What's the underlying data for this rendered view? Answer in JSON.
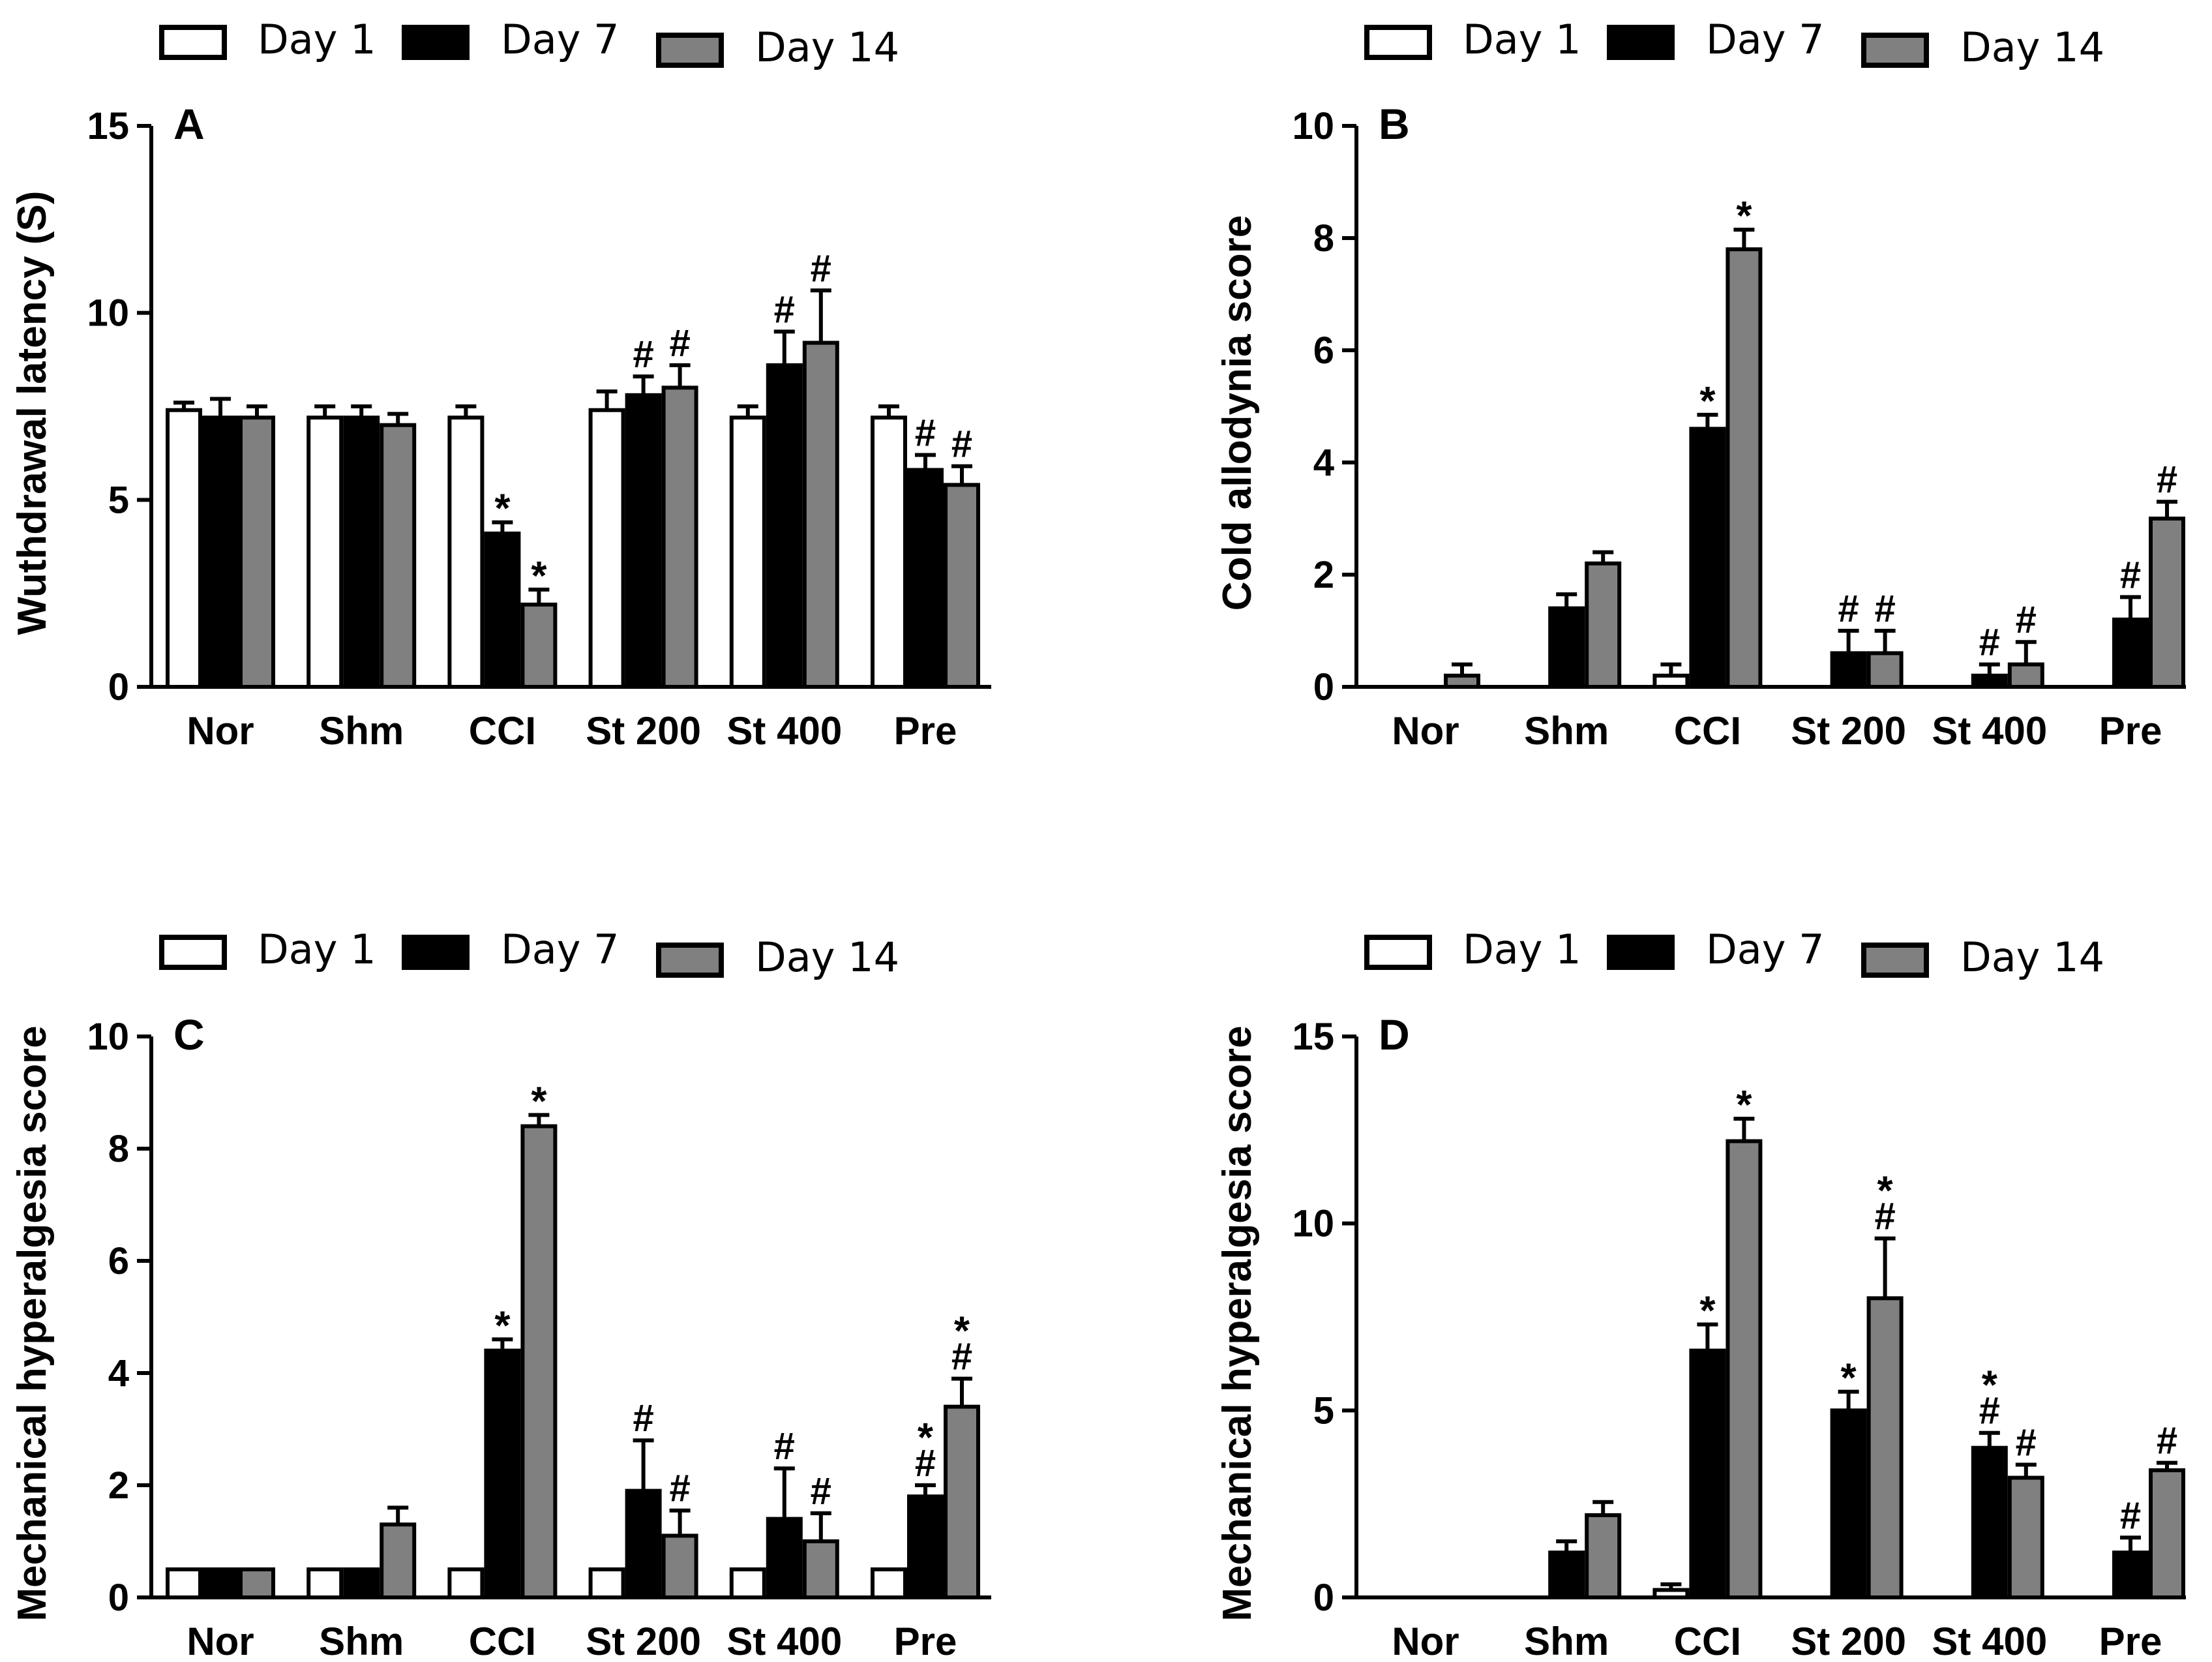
{
  "chart_data": [
    {
      "type": "bar",
      "panel_label": "A",
      "title": "",
      "xlabel": "",
      "ylabel": "Wuthdrawal latency (S)",
      "ylim": [
        0,
        15
      ],
      "yticks": [
        "0",
        "5",
        "10",
        "15"
      ],
      "categories": [
        "Nor",
        "Shm",
        "CCI",
        "St 200",
        "St 400",
        "Pre"
      ],
      "legend": [
        "Day 1",
        "Day 7",
        "Day 14"
      ],
      "series": [
        {
          "name": "Day 1",
          "color": "#ffffff",
          "values": [
            7.4,
            7.2,
            7.2,
            7.4,
            7.2,
            7.2
          ],
          "errors": [
            0.2,
            0.3,
            0.3,
            0.5,
            0.3,
            0.3
          ],
          "marks": [
            "",
            "",
            "",
            "",
            "",
            ""
          ]
        },
        {
          "name": "Day 7",
          "color": "#000000",
          "values": [
            7.2,
            7.2,
            4.1,
            7.8,
            8.6,
            5.8
          ],
          "errors": [
            0.5,
            0.3,
            0.3,
            0.5,
            0.9,
            0.4
          ],
          "marks": [
            "",
            "",
            "*",
            "#",
            "#",
            "#"
          ]
        },
        {
          "name": "Day 14",
          "color": "#808080",
          "values": [
            7.2,
            7.0,
            2.2,
            8.0,
            9.2,
            5.4
          ],
          "errors": [
            0.3,
            0.3,
            0.4,
            0.6,
            1.4,
            0.5
          ],
          "marks": [
            "",
            "",
            "*",
            "#",
            "#",
            "#"
          ]
        }
      ]
    },
    {
      "type": "bar",
      "panel_label": "B",
      "title": "",
      "xlabel": "",
      "ylabel": "Cold allodynia score",
      "ylim": [
        0,
        10
      ],
      "yticks": [
        "0",
        "2",
        "4",
        "6",
        "8",
        "10"
      ],
      "categories": [
        "Nor",
        "Shm",
        "CCI",
        "St 200",
        "St 400",
        "Pre"
      ],
      "legend": [
        "Day 1",
        "Day 7",
        "Day 14"
      ],
      "series": [
        {
          "name": "Day 1",
          "color": "#ffffff",
          "values": [
            0,
            0,
            0.2,
            0,
            0,
            0
          ],
          "errors": [
            0,
            0,
            0.2,
            0,
            0,
            0
          ],
          "marks": [
            "",
            "",
            "",
            "",
            "",
            ""
          ]
        },
        {
          "name": "Day 7",
          "color": "#000000",
          "values": [
            0,
            1.4,
            4.6,
            0.6,
            0.2,
            1.2
          ],
          "errors": [
            0,
            0.25,
            0.25,
            0.4,
            0.2,
            0.4
          ],
          "marks": [
            "",
            "",
            "*",
            "#",
            "#",
            "#"
          ]
        },
        {
          "name": "Day 14",
          "color": "#808080",
          "values": [
            0.2,
            2.2,
            7.8,
            0.6,
            0.4,
            3.0
          ],
          "errors": [
            0.2,
            0.2,
            0.35,
            0.4,
            0.4,
            0.3
          ],
          "marks": [
            "",
            "",
            "*",
            "#",
            "#",
            "#"
          ]
        }
      ]
    },
    {
      "type": "bar",
      "panel_label": "C",
      "title": "",
      "xlabel": "",
      "ylabel": "Mechanical hyperalgesia score",
      "ylim": [
        0,
        10
      ],
      "yticks": [
        "0",
        "2",
        "4",
        "6",
        "8",
        "10"
      ],
      "categories": [
        "Nor",
        "Shm",
        "CCI",
        "St 200",
        "St 400",
        "Pre"
      ],
      "legend": [
        "Day 1",
        "Day 7",
        "Day 14"
      ],
      "series": [
        {
          "name": "Day 1",
          "color": "#ffffff",
          "values": [
            0.5,
            0.5,
            0.5,
            0.5,
            0.5,
            0.5
          ],
          "errors": [
            0,
            0,
            0,
            0,
            0,
            0
          ],
          "marks": [
            "",
            "",
            "",
            "",
            "",
            ""
          ]
        },
        {
          "name": "Day 7",
          "color": "#000000",
          "values": [
            0.5,
            0.5,
            4.4,
            1.9,
            1.4,
            1.8
          ],
          "errors": [
            0,
            0,
            0.2,
            0.9,
            0.9,
            0.2
          ],
          "marks": [
            "",
            "",
            "*",
            "#",
            "#",
            "*#"
          ]
        },
        {
          "name": "Day 14",
          "color": "#808080",
          "values": [
            0.5,
            1.3,
            8.4,
            1.1,
            1.0,
            3.4
          ],
          "errors": [
            0,
            0.3,
            0.2,
            0.45,
            0.5,
            0.5
          ],
          "marks": [
            "",
            "",
            "*",
            "#",
            "#",
            "*#"
          ]
        }
      ]
    },
    {
      "type": "bar",
      "panel_label": "D",
      "title": "",
      "xlabel": "",
      "ylabel": "Mechanical hyperalgesia score",
      "ylim": [
        0,
        15
      ],
      "yticks": [
        "0",
        "5",
        "10",
        "15"
      ],
      "categories": [
        "Nor",
        "Shm",
        "CCI",
        "St 200",
        "St 400",
        "Pre"
      ],
      "legend": [
        "Day 1",
        "Day 7",
        "Day 14"
      ],
      "series": [
        {
          "name": "Day 1",
          "color": "#ffffff",
          "values": [
            0,
            0,
            0.2,
            0,
            0,
            0
          ],
          "errors": [
            0,
            0,
            0.15,
            0,
            0,
            0
          ],
          "marks": [
            "",
            "",
            "",
            "",
            "",
            ""
          ]
        },
        {
          "name": "Day 7",
          "color": "#000000",
          "values": [
            0,
            1.2,
            6.6,
            5.0,
            4.0,
            1.2
          ],
          "errors": [
            0,
            0.3,
            0.7,
            0.5,
            0.4,
            0.4
          ],
          "marks": [
            "",
            "",
            "*",
            "*",
            "*#",
            "#"
          ]
        },
        {
          "name": "Day 14",
          "color": "#808080",
          "values": [
            0,
            2.2,
            12.2,
            8.0,
            3.2,
            3.4
          ],
          "errors": [
            0,
            0.35,
            0.6,
            1.6,
            0.35,
            0.2
          ],
          "marks": [
            "",
            "",
            "*",
            "*#",
            "#",
            "#"
          ]
        }
      ]
    }
  ]
}
